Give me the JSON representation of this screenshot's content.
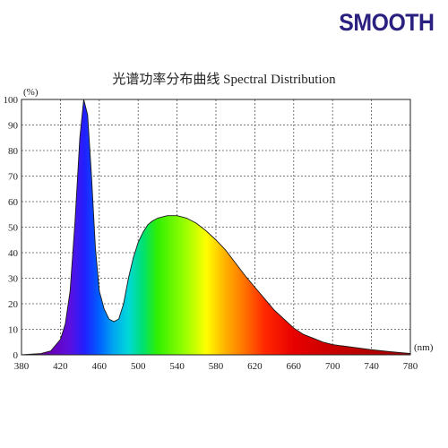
{
  "brand": {
    "name": "SMOOTH",
    "color": "#2a2080"
  },
  "chart_data": {
    "type": "area",
    "title": "光谱功率分布曲线 Spectral Distribution",
    "xlabel": "(nm)",
    "ylabel": "(%)",
    "xlim": [
      380,
      780
    ],
    "ylim": [
      0,
      100
    ],
    "x_ticks": [
      380,
      420,
      460,
      500,
      540,
      580,
      620,
      660,
      700,
      740,
      780
    ],
    "y_ticks": [
      0,
      10,
      20,
      30,
      40,
      50,
      60,
      70,
      80,
      90,
      100
    ],
    "grid": true,
    "fill": "visible-spectrum-gradient",
    "series": [
      {
        "x": [
          380,
          400,
          410,
          420,
          425,
          430,
          435,
          440,
          444,
          448,
          452,
          456,
          460,
          465,
          470,
          475,
          480,
          485,
          490,
          495,
          500,
          505,
          510,
          515,
          520,
          525,
          530,
          535,
          540,
          545,
          550,
          555,
          560,
          565,
          570,
          580,
          590,
          600,
          610,
          620,
          630,
          640,
          650,
          660,
          670,
          680,
          690,
          700,
          720,
          740,
          760,
          780
        ],
        "values": [
          0,
          0.5,
          1.5,
          6,
          12,
          25,
          52,
          85,
          100,
          94,
          70,
          42,
          25,
          18,
          14,
          13,
          14,
          20,
          30,
          38,
          44,
          48,
          51,
          52.5,
          53.5,
          54,
          54.5,
          54.5,
          54.5,
          54,
          53.5,
          52.5,
          51.5,
          50,
          48.5,
          45,
          41,
          36,
          31,
          26.5,
          22,
          17.5,
          14,
          10.5,
          8,
          6.5,
          5,
          4,
          3,
          2,
          1.2,
          0.5
        ]
      }
    ]
  }
}
